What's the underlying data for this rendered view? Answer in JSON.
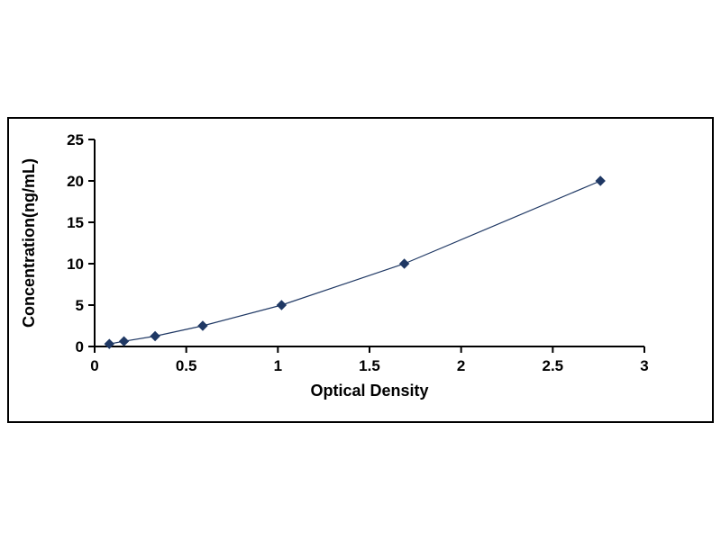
{
  "figure": {
    "background": "#ffffff",
    "border_color": "#000000"
  },
  "chart_data": {
    "type": "scatter",
    "title": "",
    "xlabel": "Optical Density",
    "ylabel": "Concentration(ng/mL)",
    "xlim": [
      0,
      3
    ],
    "ylim": [
      0,
      25
    ],
    "x_ticks": [
      0,
      0.5,
      1,
      1.5,
      2,
      2.5,
      3
    ],
    "x_tick_labels": [
      "0",
      "0.5",
      "1",
      "1.5",
      "2",
      "2.5",
      "3"
    ],
    "y_ticks": [
      0,
      5,
      10,
      15,
      20,
      25
    ],
    "y_tick_labels": [
      "0",
      "5",
      "10",
      "15",
      "20",
      "25"
    ],
    "grid": false,
    "legend": null,
    "marker": "diamond",
    "line_color": "#1F3864",
    "marker_color": "#1F3864",
    "axis_color": "#000000",
    "points": [
      {
        "x": 0.08,
        "y": 0.31
      },
      {
        "x": 0.16,
        "y": 0.63
      },
      {
        "x": 0.33,
        "y": 1.25
      },
      {
        "x": 0.59,
        "y": 2.5
      },
      {
        "x": 1.02,
        "y": 5
      },
      {
        "x": 1.69,
        "y": 10
      },
      {
        "x": 2.76,
        "y": 20
      }
    ]
  }
}
